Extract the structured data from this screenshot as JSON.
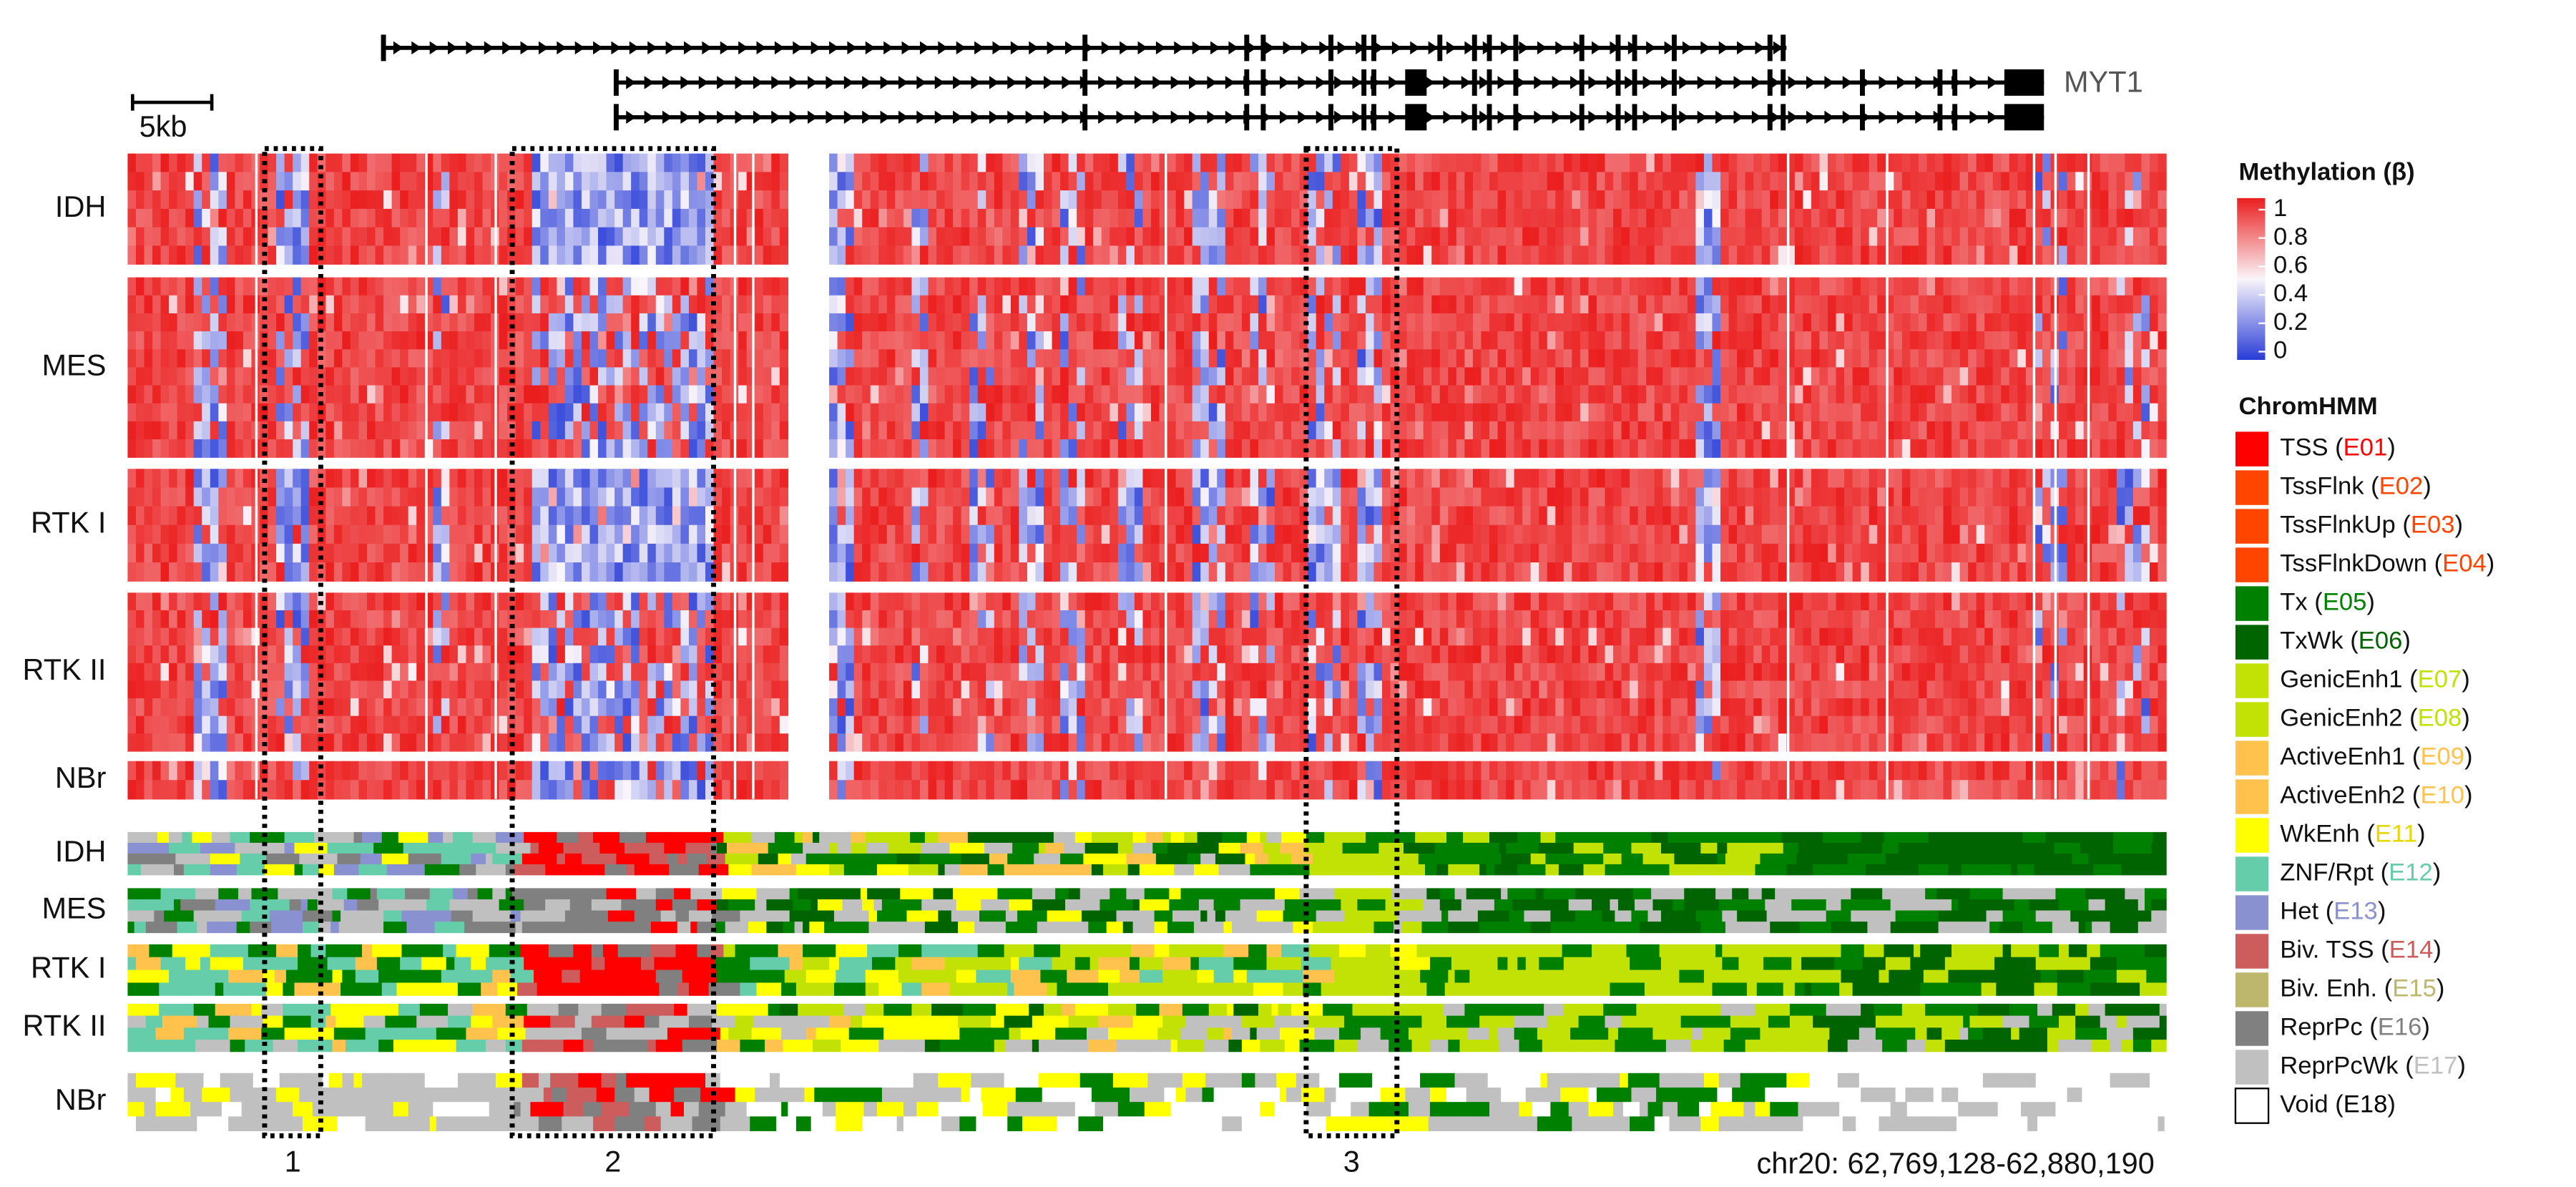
{
  "gene": {
    "name": "MYT1"
  },
  "scale_bar": "5kb",
  "methylation": {
    "groups": [
      "IDH",
      "MES",
      "RTK I",
      "RTK II",
      "NBr"
    ]
  },
  "chromhmm": {
    "groups": [
      "IDH",
      "MES",
      "RTK I",
      "RTK II",
      "NBr"
    ]
  },
  "regions": [
    "1",
    "2",
    "3"
  ],
  "coordinates": "chr20: 62,769,128-62,880,190",
  "legend": {
    "methylation_title": "Methylation (β)",
    "methylation_ticks": [
      "1",
      "0.8",
      "0.6",
      "0.4",
      "0.2",
      "0"
    ],
    "chromhmm_title": "ChromHMM",
    "states": [
      {
        "label": "TSS (E01)",
        "color": "#ff0000",
        "code_color": "#ff0000"
      },
      {
        "label": "TssFlnk (E02)",
        "color": "#ff4500",
        "code_color": "#ff4500"
      },
      {
        "label": "TssFlnkUp (E03)",
        "color": "#ff4500",
        "code_color": "#ff4500"
      },
      {
        "label": "TssFlnkDown (E04)",
        "color": "#ff4500",
        "code_color": "#ff4500"
      },
      {
        "label": "Tx (E05)",
        "color": "#008000",
        "code_color": "#008000"
      },
      {
        "label": "TxWk (E06)",
        "color": "#006400",
        "code_color": "#006400"
      },
      {
        "label": "GenicEnh1 (E07)",
        "color": "#c2e105",
        "code_color": "#c2e105"
      },
      {
        "label": "GenicEnh2 (E08)",
        "color": "#c2e105",
        "code_color": "#c2e105"
      },
      {
        "label": "ActiveEnh1 (E09)",
        "color": "#ffc34d",
        "code_color": "#ffc34d"
      },
      {
        "label": "ActiveEnh2 (E10)",
        "color": "#ffc34d",
        "code_color": "#ffc34d"
      },
      {
        "label": "WkEnh (E11)",
        "color": "#ffff00",
        "code_color": "#e6d800"
      },
      {
        "label": "ZNF/Rpt (E12)",
        "color": "#66cdaa",
        "code_color": "#66cdaa"
      },
      {
        "label": "Het (E13)",
        "color": "#8a91d0",
        "code_color": "#8a91d0"
      },
      {
        "label": "Biv. TSS (E14)",
        "color": "#cd5c5c",
        "code_color": "#cd5c5c"
      },
      {
        "label": "Biv. Enh. (E15)",
        "color": "#bdb76b",
        "code_color": "#bdb76b"
      },
      {
        "label": "ReprPc (E16)",
        "color": "#808080",
        "code_color": "#808080"
      },
      {
        "label": "ReprPcWk (E17)",
        "color": "#c0c0c0",
        "code_color": "#c0c0c0"
      },
      {
        "label": "Void (E18)",
        "color": "#ffffff",
        "code_color": "#000000"
      }
    ]
  }
}
